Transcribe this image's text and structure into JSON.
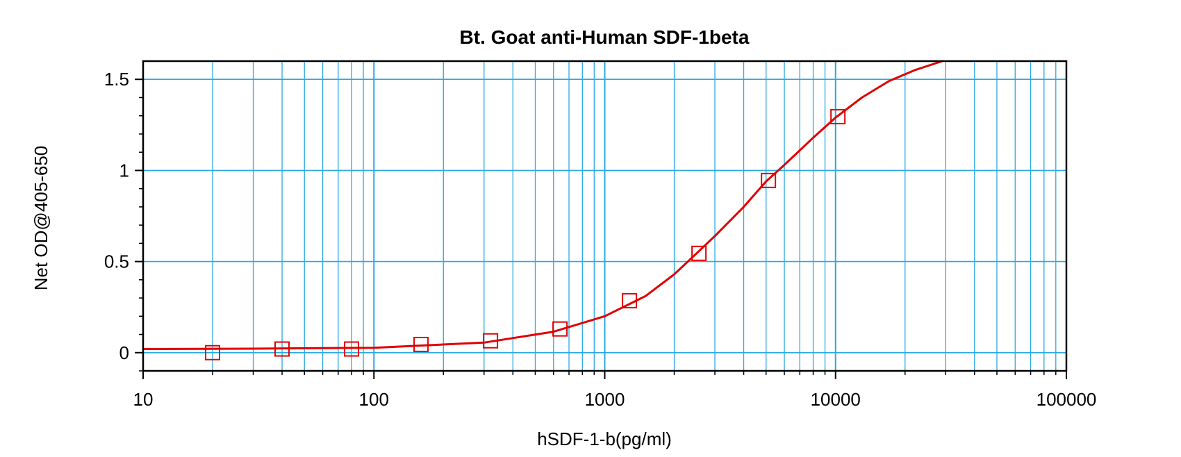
{
  "chart_data": {
    "type": "scatter",
    "title": "Bt. Goat anti-Human SDF-1beta",
    "xlabel": "hSDF-1-b(pg/ml)",
    "ylabel": "Net OD@405-650",
    "x_scale": "log",
    "xlim": [
      10,
      100000
    ],
    "ylim": [
      -0.1,
      1.6
    ],
    "x_ticks": [
      10,
      100,
      1000,
      10000,
      100000
    ],
    "x_tick_labels": [
      "10",
      "100",
      "1000",
      "10000",
      "100000"
    ],
    "y_ticks": [
      0,
      0.5,
      1,
      1.5
    ],
    "y_tick_labels": [
      "0",
      "0.5",
      "1",
      "1.5"
    ],
    "grid": true,
    "colors": {
      "grid": "#29a9e0",
      "series": "#e00000",
      "frame": "#000000"
    },
    "series": [
      {
        "type": "scatter",
        "marker": "square",
        "x": [
          20,
          40,
          80,
          160,
          320,
          640,
          1280,
          2560,
          5120,
          10240
        ],
        "y": [
          0.0,
          0.02,
          0.02,
          0.045,
          0.065,
          0.13,
          0.285,
          0.545,
          0.945,
          1.295
        ]
      },
      {
        "type": "line",
        "fit": "4-parameter logistic",
        "x": [
          10,
          30,
          100,
          300,
          600,
          1000,
          1500,
          2000,
          2500,
          3000,
          4000,
          5000,
          6000,
          8000,
          10000,
          13000,
          17000,
          22000,
          29000
        ],
        "y": [
          0.02,
          0.022,
          0.027,
          0.055,
          0.115,
          0.2,
          0.31,
          0.43,
          0.545,
          0.64,
          0.8,
          0.94,
          1.03,
          1.18,
          1.29,
          1.4,
          1.49,
          1.55,
          1.6
        ]
      }
    ]
  }
}
